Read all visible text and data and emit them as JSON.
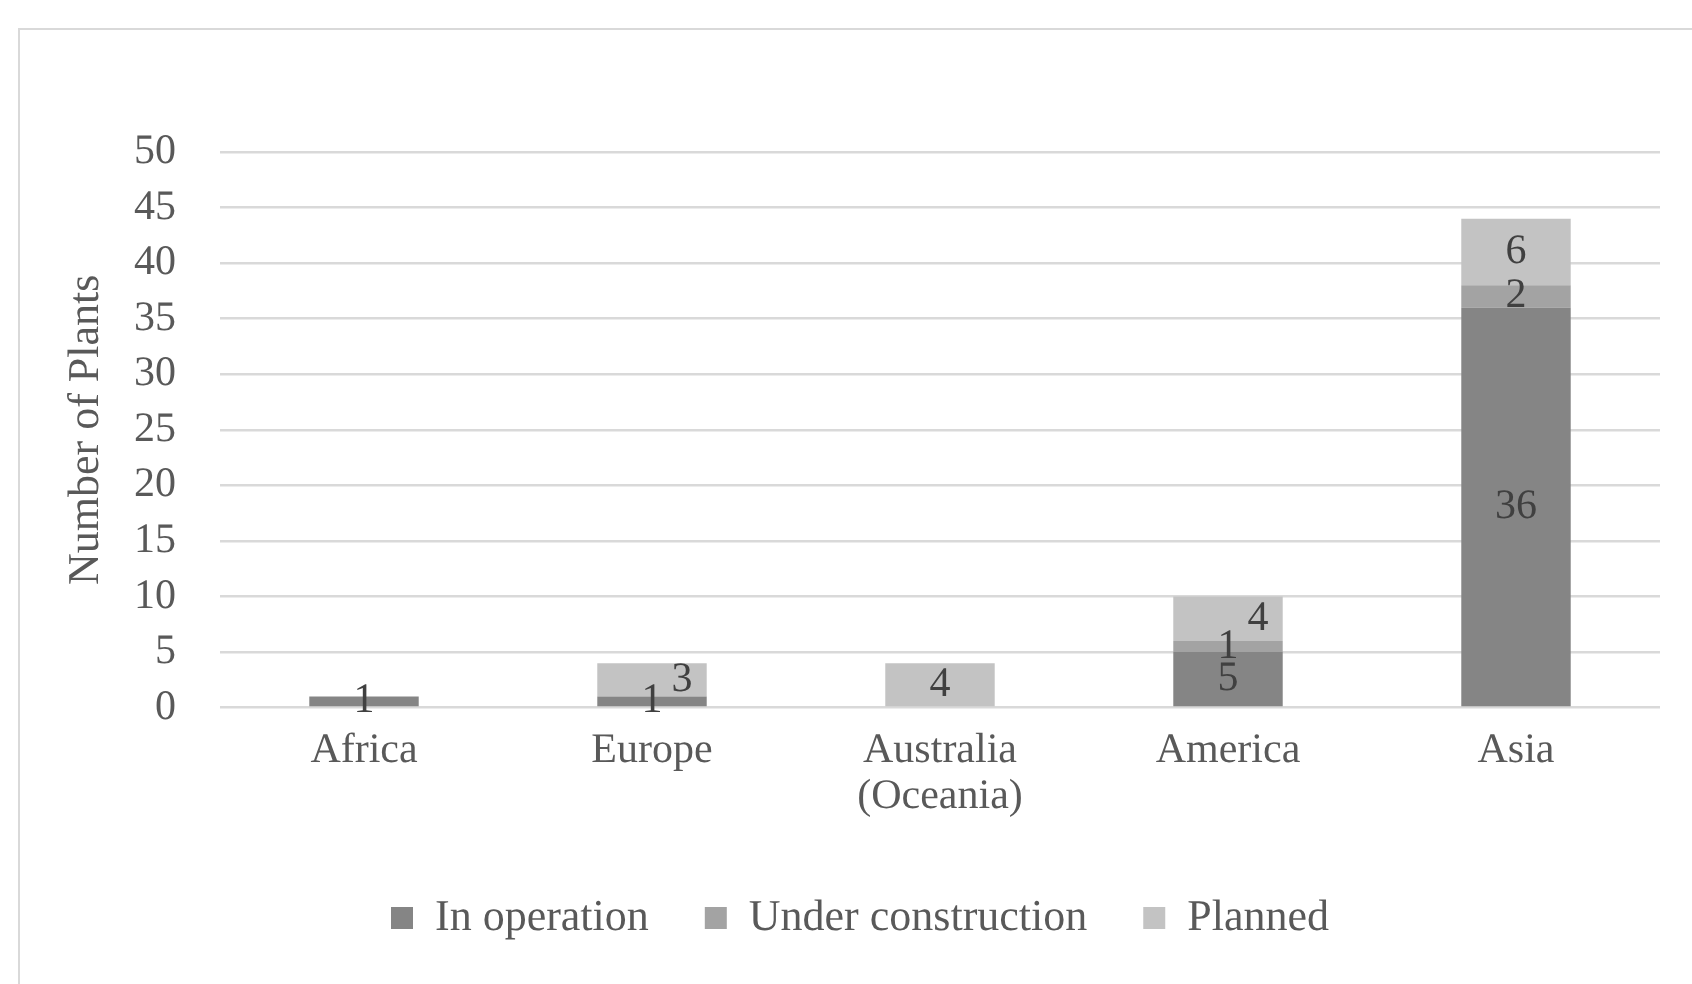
{
  "chart_data": {
    "type": "bar",
    "stacked": true,
    "ylabel": "Number of Plants",
    "categories": [
      "Africa",
      "Europe",
      "Australia (Oceania)",
      "America",
      "Asia"
    ],
    "series": [
      {
        "name": "In operation",
        "color": "#858585",
        "values": [
          1,
          1,
          null,
          5,
          36
        ]
      },
      {
        "name": "Under construction",
        "color": "#a3a3a3",
        "values": [
          null,
          null,
          null,
          1,
          2
        ]
      },
      {
        "name": "Planned",
        "color": "#c3c3c3",
        "values": [
          null,
          3,
          4,
          4,
          6
        ]
      }
    ],
    "ylim": [
      0,
      50
    ],
    "yticks": [
      0,
      5,
      10,
      15,
      20,
      25,
      30,
      35,
      40,
      45,
      50
    ],
    "grid": "y",
    "legend": "bottom",
    "data_labels": true
  }
}
